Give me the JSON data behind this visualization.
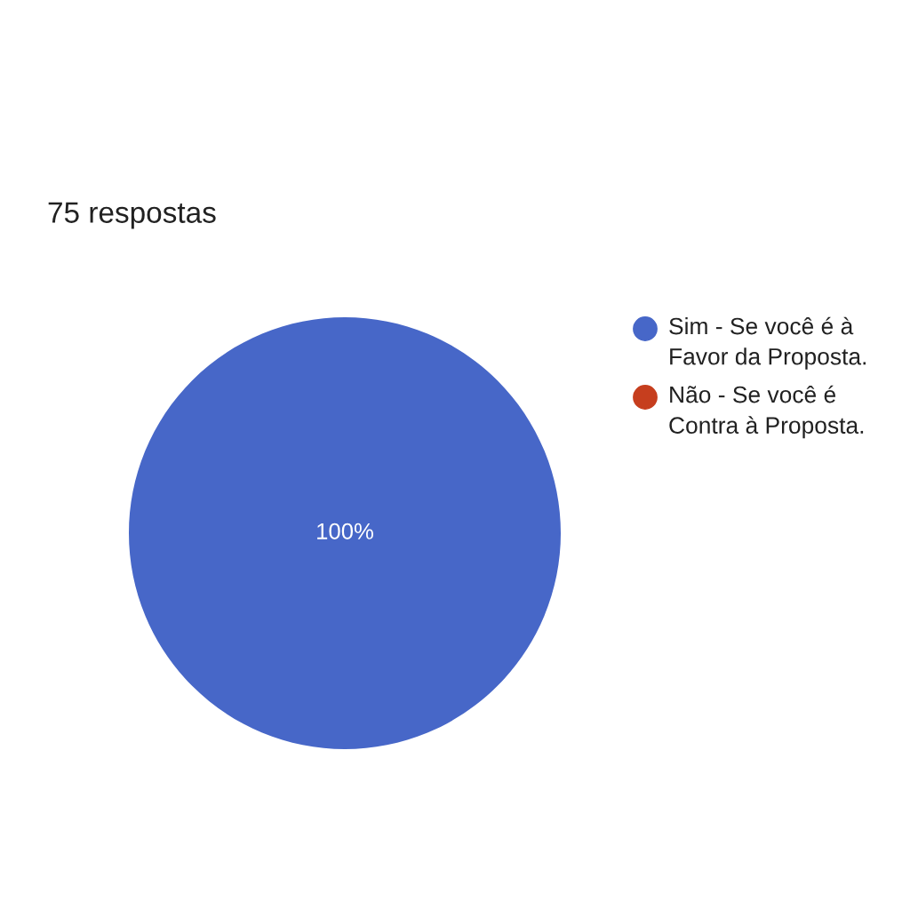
{
  "chart_data": {
    "type": "pie",
    "title": "75 respostas",
    "categories": [
      "Sim - Se você é à Favor da Proposta.",
      "Não - Se você é Contra à Proposta."
    ],
    "values": [
      100,
      0
    ],
    "colors": [
      "#4767c8",
      "#c63e1e"
    ],
    "value_labels": [
      "100%",
      null
    ],
    "legend": "right"
  }
}
